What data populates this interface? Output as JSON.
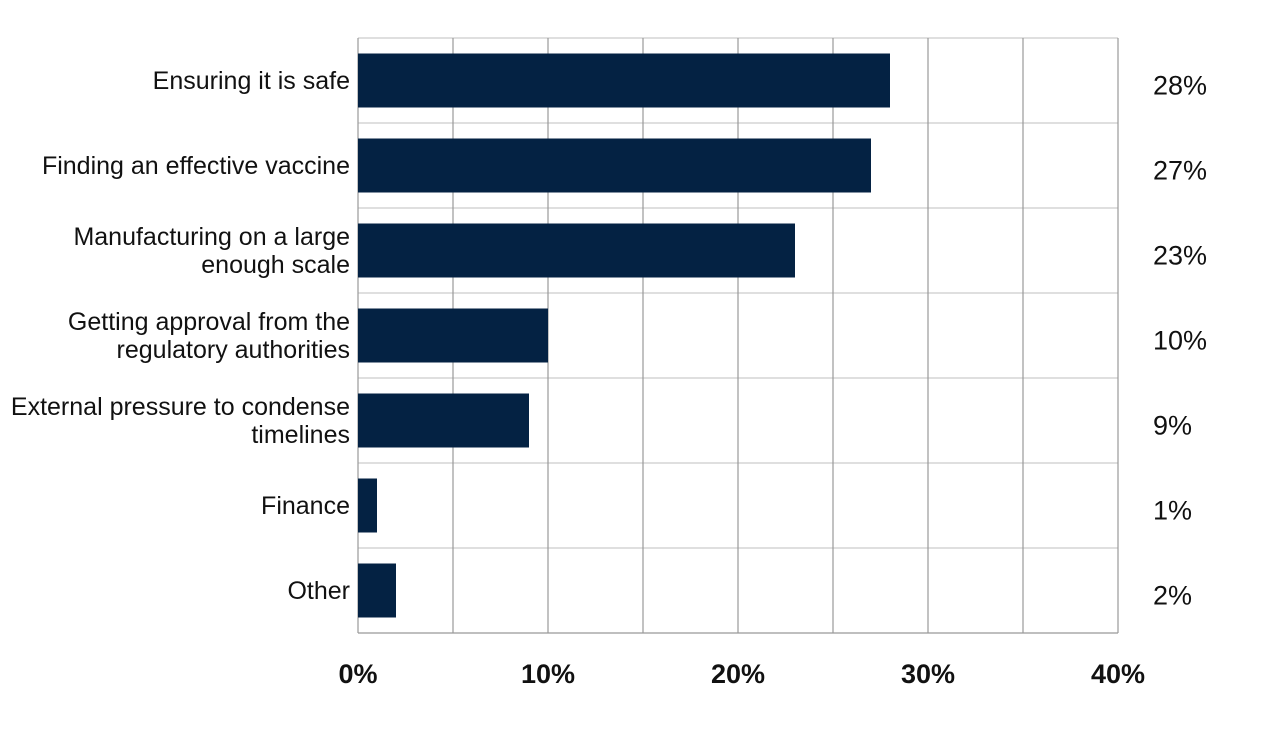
{
  "chart_data": {
    "type": "bar",
    "orientation": "horizontal",
    "categories": [
      "Ensuring it is safe",
      "Finding an effective vaccine",
      "Manufacturing on a large enough scale",
      "Getting approval from the regulatory authorities",
      "External pressure to condense timelines",
      "Finance",
      "Other"
    ],
    "values": [
      28,
      27,
      23,
      10,
      9,
      1,
      2
    ],
    "value_labels": [
      "28%",
      "27%",
      "23%",
      "10%",
      "9%",
      "1%",
      "2%"
    ],
    "color": "#042243",
    "xlim": [
      0,
      40
    ],
    "xticks": [
      {
        "value": 0,
        "label": "0%"
      },
      {
        "value": 10,
        "label": "10%"
      },
      {
        "value": 20,
        "label": "20%"
      },
      {
        "value": 30,
        "label": "30%"
      },
      {
        "value": 40,
        "label": "40%"
      }
    ],
    "minor_xticks": [
      5,
      15,
      25,
      35
    ],
    "grid": true
  }
}
